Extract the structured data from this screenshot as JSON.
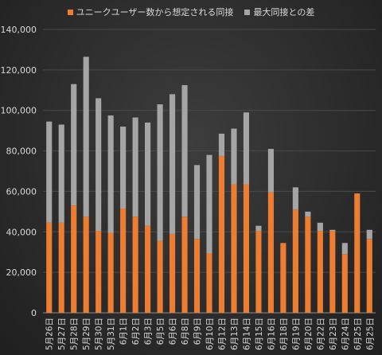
{
  "chart_data": {
    "type": "bar",
    "stacked": true,
    "categories": [
      "5月26日",
      "5月27日",
      "5月28日",
      "5月29日",
      "5月30日",
      "5月31日",
      "6月1日",
      "6月2日",
      "6月3日",
      "6月5日",
      "6月6日",
      "6月8日",
      "6月9日",
      "6月10日",
      "6月12日",
      "6月13日",
      "6月14日",
      "6月15日",
      "6月16日",
      "6月18日",
      "6月19日",
      "6月20日",
      "6月22日",
      "6月23日",
      "6月24日",
      "6月25日",
      "6月25日"
    ],
    "series": [
      {
        "name": "ユニークユーザー数から想定される同接",
        "color": "#ed7d31",
        "values": [
          44500,
          44500,
          53000,
          47500,
          40500,
          39500,
          51500,
          47500,
          43000,
          35500,
          39000,
          47500,
          36500,
          29500,
          77500,
          63500,
          63500,
          40500,
          59500,
          34500,
          51000,
          47500,
          40500,
          40500,
          29000,
          59000,
          36500
        ]
      },
      {
        "name": "最大同接との差",
        "color": "#a5a5a5",
        "values": [
          50000,
          48500,
          60000,
          79000,
          65500,
          58000,
          40500,
          49000,
          51000,
          67500,
          69000,
          65000,
          36500,
          48500,
          11000,
          27500,
          35500,
          2500,
          21500,
          0,
          11000,
          2500,
          4000,
          500,
          5500,
          0,
          4500
        ]
      }
    ],
    "yticks": [
      "0",
      "20,000",
      "40,000",
      "60,000",
      "80,000",
      "100,000",
      "120,000",
      "140,000"
    ],
    "ylim": [
      0,
      140000
    ],
    "grid": true,
    "legend_position": "top"
  }
}
